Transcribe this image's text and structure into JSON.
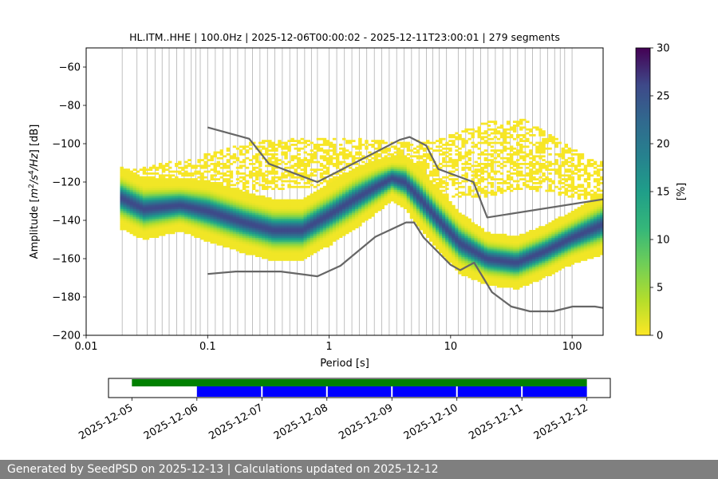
{
  "chart_data": [
    {
      "type": "heatmap",
      "title": "HL.ITM..HHE | 100.0Hz | 2025-12-06T00:00:02 - 2025-12-11T23:00:01 | 279 segments",
      "xlabel": "Period [s]",
      "ylabel_parts": {
        "prefix": "Amplitude [",
        "m": "m",
        "exp2": "2",
        "s": "/s",
        "exp4": "4",
        "hz": "/Hz",
        "suffix": "] [dB]"
      },
      "x_scale": "log",
      "xlim": [
        0.01,
        180
      ],
      "ylim": [
        -200,
        -50
      ],
      "x_ticks": [
        {
          "value": 0.01,
          "label": "0.01"
        },
        {
          "value": 0.1,
          "label": "0.1"
        },
        {
          "value": 1,
          "label": "1"
        },
        {
          "value": 10,
          "label": "10"
        },
        {
          "value": 100,
          "label": "100"
        }
      ],
      "y_ticks": [
        {
          "value": -60,
          "label": "−60"
        },
        {
          "value": -80,
          "label": "−80"
        },
        {
          "value": -100,
          "label": "−100"
        },
        {
          "value": -120,
          "label": "−120"
        },
        {
          "value": -140,
          "label": "−140"
        },
        {
          "value": -160,
          "label": "−160"
        },
        {
          "value": -180,
          "label": "−180"
        },
        {
          "value": -200,
          "label": "−200"
        }
      ],
      "grid": "period bins (vertical)",
      "colormap": "viridis_r",
      "colorbar": {
        "label": "[%]",
        "range": [
          0,
          30
        ],
        "ticks": [
          {
            "value": 0,
            "label": "0"
          },
          {
            "value": 5,
            "label": "5"
          },
          {
            "value": 10,
            "label": "10"
          },
          {
            "value": 15,
            "label": "15"
          },
          {
            "value": 20,
            "label": "20"
          },
          {
            "value": 25,
            "label": "25"
          },
          {
            "value": 30,
            "label": "30"
          }
        ]
      },
      "period_bin_centers": [
        0.0198,
        0.0262,
        0.0318,
        0.0369,
        0.0422,
        0.0482,
        0.0557,
        0.0641,
        0.0733,
        0.0798,
        0.0869,
        0.1,
        0.1156,
        0.1333,
        0.1536,
        0.1767,
        0.2032,
        0.2339,
        0.2695,
        0.3107,
        0.3577,
        0.4118,
        0.4741,
        0.5461,
        0.6287,
        0.7147,
        0.8011,
        1.0,
        1.155,
        1.336,
        1.539,
        1.771,
        2.04,
        2.355,
        2.708,
        3.123,
        3.596,
        4.137,
        4.766,
        5.492,
        6.323,
        7.12,
        8.04,
        9.25,
        11.55,
        13.32,
        15.35,
        17.66,
        20.32,
        23.34,
        26.88,
        30.98,
        35.62,
        41.02,
        47.29,
        54.62,
        62.78,
        71.82,
        79.83,
        86.86,
        99.9
      ],
      "ridge": {
        "period": [
          0.019,
          0.03,
          0.06,
          0.1,
          0.2,
          0.35,
          0.6,
          1.0,
          1.6,
          2.5,
          3.3,
          4.2,
          5.5,
          8,
          12,
          20,
          35,
          60,
          100,
          180
        ],
        "mode_db": [
          -128,
          -134,
          -132,
          -135,
          -141,
          -145,
          -145,
          -137,
          -129,
          -122,
          -118,
          -120,
          -128,
          -140,
          -152,
          -160,
          -162,
          -156,
          -149,
          -142
        ],
        "spread_db": [
          7,
          7,
          6,
          7,
          7,
          7,
          7,
          7,
          7,
          6,
          5,
          6,
          7,
          7,
          7,
          6,
          6,
          6,
          6,
          7
        ]
      },
      "faint_band": {
        "period": [
          0.019,
          0.07,
          0.2,
          0.6,
          1.5,
          3.5,
          8,
          20,
          40,
          100,
          180
        ],
        "center_db": [
          -122,
          -118,
          -112,
          -110,
          -110,
          -112,
          -113,
          -108,
          -105,
          -115,
          -120
        ],
        "spread_db": [
          6,
          8,
          10,
          10,
          10,
          10,
          12,
          15,
          14,
          10,
          8
        ]
      },
      "series": [
        {
          "style": "NHNM",
          "period": [
            0.1,
            0.22,
            0.32,
            0.8,
            3.8,
            4.6,
            6.3,
            7.9,
            15.4,
            20,
            180
          ],
          "amplitude_db": [
            -91.5,
            -97.4,
            -110.5,
            -120,
            -98,
            -96.5,
            -101,
            -113.2,
            -120,
            -138.5,
            -129
          ]
        },
        {
          "style": "NLNM",
          "period": [
            0.1,
            0.17,
            0.4,
            0.8,
            1.24,
            2.4,
            4.3,
            5,
            6,
            10,
            12,
            15.6,
            21.9,
            31.6,
            45,
            70,
            101,
            154,
            180
          ],
          "amplitude_db": [
            -168,
            -166.7,
            -166.7,
            -169.2,
            -163.7,
            -148.6,
            -141.1,
            -141.1,
            -149,
            -163.2,
            -166,
            -162.1,
            -177.5,
            -185,
            -187.5,
            -187.5,
            -185,
            -185,
            -185.7
          ]
        }
      ]
    },
    {
      "type": "timeline",
      "x_ticks": [
        "2025-12-05",
        "2025-12-06",
        "2025-12-07",
        "2025-12-08",
        "2025-12-09",
        "2025-12-10",
        "2025-12-11",
        "2025-12-12"
      ],
      "xlim_days": [
        -0.36,
        7.36
      ],
      "bars": [
        {
          "row": "upper",
          "color": "#008000",
          "from_day": 0.0,
          "to_day": 7.0
        },
        {
          "row": "lower",
          "color": "#0000ff",
          "from_day": 1.0,
          "to_day": 7.0
        }
      ],
      "day_markers": [
        2,
        3,
        4,
        5,
        6
      ]
    }
  ],
  "footer": {
    "text": "Generated by SeedPSD on 2025-12-13 | Calculations updated on 2025-12-12"
  }
}
